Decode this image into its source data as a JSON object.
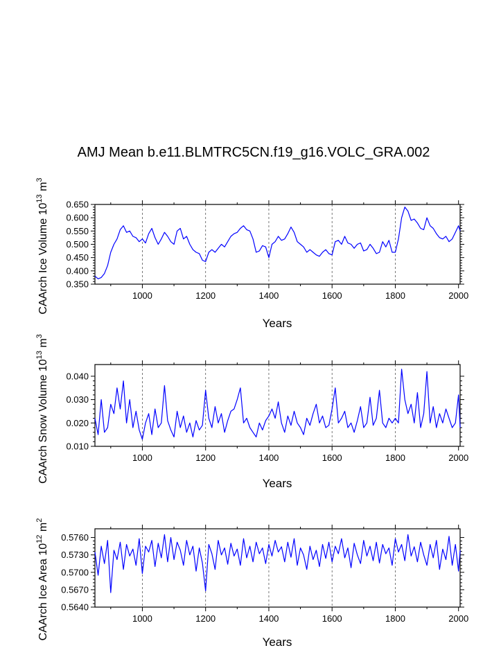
{
  "figure": {
    "title": "AMJ Mean b.e11.BLMTRC5CN.f19_g16.VOLC_GRA.002"
  },
  "colors": {
    "series": "#0000ff",
    "axis": "#000000",
    "grid": "#555555"
  },
  "chart_data": [
    {
      "type": "line",
      "id": "ice-volume",
      "ylabel_main": "CAArch Ice Volume 10",
      "ylabel_exp": "13",
      "ylabel_unit": " m",
      "ylabel_unit_exp": "3",
      "xlabel": "Years",
      "xlim": [
        850,
        2005
      ],
      "ylim": [
        0.35,
        0.65
      ],
      "xticks": [
        1000,
        1200,
        1400,
        1600,
        1800,
        2000
      ],
      "yticks": [
        "0.350",
        "0.400",
        "0.450",
        "0.500",
        "0.550",
        "0.600",
        "0.650"
      ],
      "grid_x": [
        1000,
        1200,
        1400,
        1600,
        1800
      ],
      "series": [
        {
          "name": "CAArch Ice Volume",
          "x": [
            850,
            860,
            870,
            880,
            890,
            900,
            910,
            920,
            930,
            940,
            950,
            960,
            970,
            980,
            990,
            1000,
            1010,
            1020,
            1030,
            1040,
            1050,
            1060,
            1070,
            1080,
            1090,
            1100,
            1110,
            1120,
            1130,
            1140,
            1150,
            1160,
            1170,
            1180,
            1190,
            1200,
            1210,
            1220,
            1230,
            1240,
            1250,
            1260,
            1270,
            1280,
            1290,
            1300,
            1310,
            1320,
            1330,
            1340,
            1350,
            1360,
            1370,
            1380,
            1390,
            1400,
            1410,
            1420,
            1430,
            1440,
            1450,
            1460,
            1470,
            1480,
            1490,
            1500,
            1510,
            1520,
            1530,
            1540,
            1550,
            1560,
            1570,
            1580,
            1590,
            1600,
            1610,
            1620,
            1630,
            1640,
            1650,
            1660,
            1670,
            1680,
            1690,
            1700,
            1710,
            1720,
            1730,
            1740,
            1750,
            1760,
            1770,
            1780,
            1790,
            1800,
            1810,
            1820,
            1830,
            1840,
            1850,
            1860,
            1870,
            1880,
            1890,
            1900,
            1910,
            1920,
            1930,
            1940,
            1950,
            1960,
            1970,
            1980,
            1990,
            2000,
            2005
          ],
          "y": [
            0.38,
            0.37,
            0.375,
            0.39,
            0.42,
            0.47,
            0.5,
            0.52,
            0.555,
            0.57,
            0.545,
            0.55,
            0.53,
            0.525,
            0.51,
            0.52,
            0.505,
            0.54,
            0.56,
            0.525,
            0.5,
            0.52,
            0.545,
            0.53,
            0.51,
            0.5,
            0.55,
            0.56,
            0.52,
            0.53,
            0.5,
            0.48,
            0.47,
            0.465,
            0.44,
            0.435,
            0.47,
            0.48,
            0.47,
            0.485,
            0.5,
            0.49,
            0.51,
            0.53,
            0.54,
            0.545,
            0.56,
            0.57,
            0.555,
            0.55,
            0.52,
            0.47,
            0.475,
            0.495,
            0.49,
            0.45,
            0.5,
            0.51,
            0.53,
            0.515,
            0.52,
            0.54,
            0.565,
            0.545,
            0.51,
            0.5,
            0.49,
            0.47,
            0.48,
            0.47,
            0.46,
            0.455,
            0.47,
            0.48,
            0.465,
            0.46,
            0.51,
            0.515,
            0.5,
            0.53,
            0.505,
            0.5,
            0.485,
            0.5,
            0.505,
            0.475,
            0.48,
            0.5,
            0.485,
            0.465,
            0.47,
            0.51,
            0.49,
            0.515,
            0.47,
            0.47,
            0.52,
            0.6,
            0.64,
            0.625,
            0.59,
            0.595,
            0.58,
            0.56,
            0.555,
            0.6,
            0.57,
            0.56,
            0.54,
            0.525,
            0.52,
            0.53,
            0.51,
            0.52,
            0.545,
            0.57,
            0.55
          ]
        }
      ]
    },
    {
      "type": "line",
      "id": "snow-volume",
      "ylabel_main": "CAArch Snow Volume 10",
      "ylabel_exp": "13",
      "ylabel_unit": " m",
      "ylabel_unit_exp": "3",
      "xlabel": "Years",
      "xlim": [
        850,
        2005
      ],
      "ylim": [
        0.01,
        0.045
      ],
      "xticks": [
        1000,
        1200,
        1400,
        1600,
        1800,
        2000
      ],
      "yticks": [
        "0.010",
        "0.020",
        "0.030",
        "0.040"
      ],
      "grid_x": [
        1000,
        1200,
        1400,
        1600,
        1800
      ],
      "series": [
        {
          "name": "CAArch Snow Volume",
          "x": [
            850,
            860,
            870,
            880,
            890,
            900,
            910,
            920,
            930,
            940,
            950,
            960,
            970,
            980,
            990,
            1000,
            1010,
            1020,
            1030,
            1040,
            1050,
            1060,
            1070,
            1080,
            1090,
            1100,
            1110,
            1120,
            1130,
            1140,
            1150,
            1160,
            1170,
            1180,
            1190,
            1200,
            1210,
            1220,
            1230,
            1240,
            1250,
            1260,
            1270,
            1280,
            1290,
            1300,
            1310,
            1320,
            1330,
            1340,
            1350,
            1360,
            1370,
            1380,
            1390,
            1400,
            1410,
            1420,
            1430,
            1440,
            1450,
            1460,
            1470,
            1480,
            1490,
            1500,
            1510,
            1520,
            1530,
            1540,
            1550,
            1560,
            1570,
            1580,
            1590,
            1600,
            1610,
            1620,
            1630,
            1640,
            1650,
            1660,
            1670,
            1680,
            1690,
            1700,
            1710,
            1720,
            1730,
            1740,
            1750,
            1760,
            1770,
            1780,
            1790,
            1800,
            1810,
            1820,
            1830,
            1840,
            1850,
            1860,
            1870,
            1880,
            1890,
            1900,
            1910,
            1920,
            1930,
            1940,
            1950,
            1960,
            1970,
            1980,
            1990,
            2000,
            2005
          ],
          "y": [
            0.022,
            0.015,
            0.03,
            0.016,
            0.018,
            0.028,
            0.024,
            0.035,
            0.026,
            0.038,
            0.02,
            0.03,
            0.018,
            0.025,
            0.017,
            0.013,
            0.02,
            0.024,
            0.015,
            0.026,
            0.018,
            0.02,
            0.036,
            0.021,
            0.017,
            0.014,
            0.025,
            0.018,
            0.023,
            0.016,
            0.02,
            0.014,
            0.021,
            0.017,
            0.019,
            0.034,
            0.022,
            0.018,
            0.027,
            0.02,
            0.024,
            0.016,
            0.021,
            0.025,
            0.026,
            0.03,
            0.035,
            0.02,
            0.022,
            0.018,
            0.016,
            0.014,
            0.02,
            0.017,
            0.021,
            0.023,
            0.026,
            0.022,
            0.029,
            0.02,
            0.016,
            0.023,
            0.019,
            0.025,
            0.02,
            0.018,
            0.015,
            0.022,
            0.019,
            0.024,
            0.028,
            0.02,
            0.023,
            0.018,
            0.019,
            0.026,
            0.035,
            0.02,
            0.022,
            0.025,
            0.018,
            0.02,
            0.016,
            0.021,
            0.027,
            0.018,
            0.02,
            0.031,
            0.019,
            0.022,
            0.034,
            0.02,
            0.018,
            0.022,
            0.02,
            0.022,
            0.02,
            0.043,
            0.03,
            0.024,
            0.028,
            0.02,
            0.033,
            0.018,
            0.024,
            0.042,
            0.02,
            0.027,
            0.018,
            0.024,
            0.02,
            0.026,
            0.022,
            0.018,
            0.02,
            0.032,
            0.018
          ]
        }
      ]
    },
    {
      "type": "line",
      "id": "ice-area",
      "ylabel_main": "CAArch Ice Area 10",
      "ylabel_exp": "12",
      "ylabel_unit": " m",
      "ylabel_unit_exp": "2",
      "xlabel": "Years",
      "xlim": [
        850,
        2005
      ],
      "ylim": [
        0.564,
        0.5775
      ],
      "xticks": [
        1000,
        1200,
        1400,
        1600,
        1800,
        2000
      ],
      "yticks": [
        "0.5640",
        "0.5670",
        "0.5700",
        "0.5730",
        "0.5760"
      ],
      "grid_x": [
        1000,
        1200,
        1400,
        1600,
        1800
      ],
      "series": [
        {
          "name": "CAArch Ice Area",
          "x": [
            850,
            860,
            870,
            880,
            890,
            900,
            910,
            920,
            930,
            940,
            950,
            960,
            970,
            980,
            990,
            1000,
            1010,
            1020,
            1030,
            1040,
            1050,
            1060,
            1070,
            1080,
            1090,
            1100,
            1110,
            1120,
            1130,
            1140,
            1150,
            1160,
            1170,
            1180,
            1190,
            1200,
            1210,
            1220,
            1230,
            1240,
            1250,
            1260,
            1270,
            1280,
            1290,
            1300,
            1310,
            1320,
            1330,
            1340,
            1350,
            1360,
            1370,
            1380,
            1390,
            1400,
            1410,
            1420,
            1430,
            1440,
            1450,
            1460,
            1470,
            1480,
            1490,
            1500,
            1510,
            1520,
            1530,
            1540,
            1550,
            1560,
            1570,
            1580,
            1590,
            1600,
            1610,
            1620,
            1630,
            1640,
            1650,
            1660,
            1670,
            1680,
            1690,
            1700,
            1710,
            1720,
            1730,
            1740,
            1750,
            1760,
            1770,
            1780,
            1790,
            1800,
            1810,
            1820,
            1830,
            1840,
            1850,
            1860,
            1870,
            1880,
            1890,
            1900,
            1910,
            1920,
            1930,
            1940,
            1950,
            1960,
            1970,
            1980,
            1990,
            2000,
            2005
          ],
          "y": [
            0.5735,
            0.5695,
            0.5745,
            0.5715,
            0.5755,
            0.5665,
            0.5738,
            0.5722,
            0.5752,
            0.5705,
            0.5748,
            0.5728,
            0.574,
            0.5712,
            0.5758,
            0.5698,
            0.5745,
            0.5735,
            0.5755,
            0.571,
            0.575,
            0.5725,
            0.5765,
            0.5718,
            0.576,
            0.5722,
            0.5752,
            0.5738,
            0.5712,
            0.5755,
            0.573,
            0.5745,
            0.5702,
            0.5742,
            0.5716,
            0.5668,
            0.5748,
            0.5732,
            0.5705,
            0.5755,
            0.573,
            0.5742,
            0.5714,
            0.575,
            0.5728,
            0.574,
            0.5712,
            0.5758,
            0.5725,
            0.5745,
            0.5718,
            0.5752,
            0.5732,
            0.5742,
            0.5715,
            0.5748,
            0.5728,
            0.5755,
            0.5735,
            0.5744,
            0.5718,
            0.5752,
            0.5726,
            0.5758,
            0.5712,
            0.5742,
            0.573,
            0.5705,
            0.5745,
            0.5722,
            0.5738,
            0.571,
            0.5748,
            0.5724,
            0.5752,
            0.5718,
            0.5745,
            0.5732,
            0.5758,
            0.5725,
            0.5742,
            0.5708,
            0.575,
            0.573,
            0.5715,
            0.5755,
            0.5728,
            0.5745,
            0.572,
            0.5752,
            0.5716,
            0.5748,
            0.5732,
            0.5742,
            0.5712,
            0.5758,
            0.5735,
            0.5748,
            0.572,
            0.5765,
            0.5728,
            0.5744,
            0.5718,
            0.5752,
            0.573,
            0.5712,
            0.5748,
            0.5725,
            0.5755,
            0.5705,
            0.574,
            0.5722,
            0.5762,
            0.5712,
            0.5748,
            0.5702,
            0.5738
          ]
        }
      ]
    }
  ]
}
